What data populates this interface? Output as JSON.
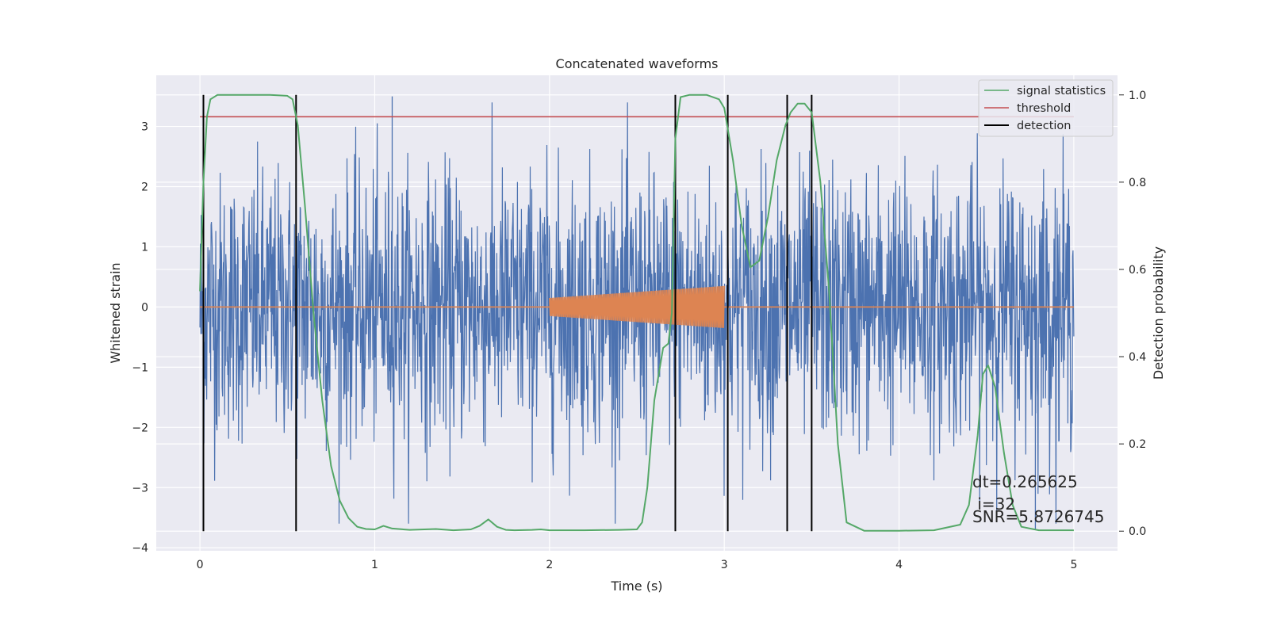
{
  "chart_data": {
    "type": "line",
    "title": "Concatenated waveforms",
    "xlabel": "Time (s)",
    "ylabel": "Whitened strain",
    "y2label": "Detection probability",
    "xlim": [
      -0.25,
      5.25
    ],
    "ylim": [
      -4.05,
      3.85
    ],
    "y2lim": [
      -0.045,
      1.045
    ],
    "xticks": [
      0,
      1,
      2,
      3,
      4,
      5
    ],
    "yticks": [
      3,
      2,
      1,
      0,
      -1,
      -2,
      -3,
      -4
    ],
    "y2ticks": [
      1.0,
      0.8,
      0.6,
      0.4,
      0.2,
      0.0
    ],
    "xtick_labels": [
      "0",
      "1",
      "2",
      "3",
      "4",
      "5"
    ],
    "ytick_labels": [
      "3",
      "2",
      "1",
      "0",
      "−1",
      "−2",
      "−3",
      "−4"
    ],
    "y2tick_labels": [
      "1.0",
      "0.8",
      "0.6",
      "0.4",
      "0.2",
      "0.0"
    ],
    "grid": true,
    "legend_position": "top-right",
    "colors": {
      "background": "#eaeaf2",
      "strain": "#4c72b0",
      "template": "#dd8452",
      "signal_statistics": "#55a868",
      "threshold": "#c44e52",
      "detection": "#000000"
    },
    "series": [
      {
        "name": "signal statistics",
        "axis": "right",
        "x": [
          0.0,
          0.02,
          0.04,
          0.06,
          0.1,
          0.2,
          0.3,
          0.4,
          0.5,
          0.53,
          0.56,
          0.6,
          0.65,
          0.7,
          0.75,
          0.8,
          0.85,
          0.9,
          0.95,
          1.0,
          1.05,
          1.1,
          1.2,
          1.35,
          1.45,
          1.55,
          1.6,
          1.65,
          1.7,
          1.75,
          1.8,
          1.9,
          1.95,
          2.0,
          2.2,
          2.4,
          2.5,
          2.53,
          2.56,
          2.6,
          2.65,
          2.68,
          2.7,
          2.72,
          2.75,
          2.8,
          2.9,
          2.97,
          3.0,
          3.05,
          3.1,
          3.15,
          3.2,
          3.25,
          3.3,
          3.35,
          3.38,
          3.42,
          3.46,
          3.5,
          3.55,
          3.6,
          3.65,
          3.7,
          3.8,
          4.0,
          4.2,
          4.35,
          4.4,
          4.45,
          4.48,
          4.51,
          4.55,
          4.6,
          4.65,
          4.7,
          4.8,
          5.0
        ],
        "values": [
          0.55,
          0.8,
          0.95,
          0.99,
          1.0,
          1.0,
          1.0,
          1.0,
          0.998,
          0.99,
          0.93,
          0.75,
          0.5,
          0.3,
          0.15,
          0.07,
          0.03,
          0.01,
          0.005,
          0.004,
          0.012,
          0.006,
          0.003,
          0.005,
          0.002,
          0.004,
          0.012,
          0.027,
          0.01,
          0.003,
          0.002,
          0.003,
          0.004,
          0.002,
          0.002,
          0.003,
          0.004,
          0.02,
          0.1,
          0.3,
          0.42,
          0.43,
          0.5,
          0.9,
          0.995,
          1.0,
          1.0,
          0.99,
          0.97,
          0.85,
          0.7,
          0.605,
          0.62,
          0.72,
          0.85,
          0.93,
          0.96,
          0.98,
          0.98,
          0.96,
          0.8,
          0.55,
          0.2,
          0.02,
          0.001,
          0.001,
          0.002,
          0.015,
          0.06,
          0.22,
          0.36,
          0.38,
          0.33,
          0.18,
          0.06,
          0.01,
          0.002,
          0.002
        ]
      },
      {
        "name": "threshold",
        "axis": "right",
        "x": [
          0,
          5
        ],
        "values": [
          0.95,
          0.95
        ]
      },
      {
        "name": "detection",
        "axis": "right",
        "x_positions": [
          0.02,
          0.55,
          2.72,
          3.02,
          3.36,
          3.5
        ],
        "range": [
          0,
          1
        ]
      },
      {
        "name": "",
        "axis": "left",
        "description_type": "whitened_strain_noise",
        "x_range": [
          0,
          5
        ],
        "typical_amplitude": 1.1,
        "extremes": [
          3.5,
          -3.7
        ]
      },
      {
        "name": "",
        "axis": "left",
        "description_type": "template_chirp",
        "x_range": [
          2.0,
          3.0
        ],
        "amplitude_start": 0.15,
        "amplitude_end": 0.35
      }
    ],
    "annotations": [
      "dt=0.265625",
      " i=32",
      "SNR=5.8726745"
    ]
  }
}
